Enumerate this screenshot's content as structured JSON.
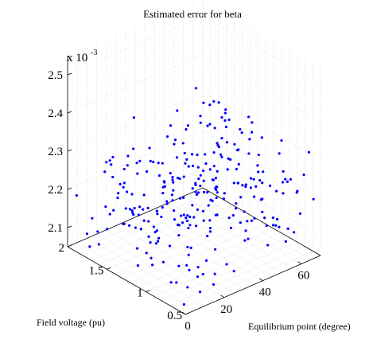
{
  "chart_data": {
    "type": "scatter",
    "title": "Estimated error for beta",
    "xlabel": "Equilibrium point (degree)",
    "ylabel": "Field voltage (pu)",
    "zlabel": "",
    "z_exponent_base": "x 10",
    "z_exponent_power": "-3",
    "xlim": [
      0,
      70
    ],
    "ylim": [
      0.5,
      2
    ],
    "zlim": [
      2.05,
      2.55
    ],
    "x_ticks": [
      0,
      20,
      40,
      60
    ],
    "x_tick_labels": [
      "0",
      "20",
      "40",
      "60"
    ],
    "y_ticks": [
      0.5,
      1,
      1.5,
      2
    ],
    "y_tick_labels": [
      "0.5",
      "1",
      "1.5",
      "2"
    ],
    "z_ticks": [
      2.1,
      2.2,
      2.3,
      2.4,
      2.5
    ],
    "z_tick_labels": [
      "2.1",
      "2.2",
      "2.3",
      "2.4",
      "2.5"
    ],
    "grid": true,
    "marker_color": "#0000ff",
    "point_count": 290,
    "x_grid_values": [
      0,
      5,
      10,
      15,
      20,
      25,
      30,
      35,
      40,
      45,
      50,
      55,
      60,
      65,
      70
    ],
    "y_grid_values": [
      0.5,
      0.6,
      0.7,
      0.8,
      0.9,
      1.0,
      1.1,
      1.2,
      1.3,
      1.4,
      1.5,
      1.6,
      1.7,
      1.8,
      1.9,
      2.0
    ],
    "z_mean": 2.2,
    "z_spread": 0.25,
    "z_trend_per_degree": 0.0005
  }
}
